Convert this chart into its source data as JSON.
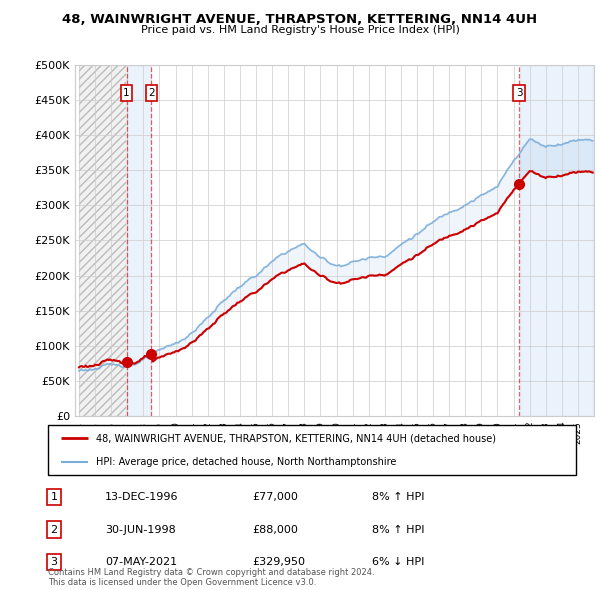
{
  "title": "48, WAINWRIGHT AVENUE, THRAPSTON, KETTERING, NN14 4UH",
  "subtitle": "Price paid vs. HM Land Registry's House Price Index (HPI)",
  "sale_prices": [
    77000,
    88000,
    329950
  ],
  "sale_labels": [
    "1",
    "2",
    "3"
  ],
  "legend_entries": [
    {
      "label": "48, WAINWRIGHT AVENUE, THRAPSTON, KETTERING, NN14 4UH (detached house)",
      "color": "#cc0000",
      "lw": 2.0
    },
    {
      "label": "HPI: Average price, detached house, North Northamptonshire",
      "color": "#7aaddb",
      "lw": 1.5
    }
  ],
  "table_rows": [
    {
      "num": "1",
      "date": "13-DEC-1996",
      "price": "£77,000",
      "hpi": "8% ↑ HPI"
    },
    {
      "num": "2",
      "date": "30-JUN-1998",
      "price": "£88,000",
      "hpi": "8% ↑ HPI"
    },
    {
      "num": "3",
      "date": "07-MAY-2021",
      "price": "£329,950",
      "hpi": "6% ↓ HPI"
    }
  ],
  "footer": "Contains HM Land Registry data © Crown copyright and database right 2024.\nThis data is licensed under the Open Government Licence v3.0.",
  "ylim": [
    0,
    500000
  ],
  "yticks": [
    0,
    50000,
    100000,
    150000,
    200000,
    250000,
    300000,
    350000,
    400000,
    450000,
    500000
  ],
  "ytick_labels": [
    "£0",
    "£50K",
    "£100K",
    "£150K",
    "£200K",
    "£250K",
    "£300K",
    "£350K",
    "£400K",
    "£450K",
    "£500K"
  ],
  "property_color": "#cc0000",
  "hpi_color": "#7aaddb",
  "shade_color": "#cce0f5",
  "vline_color": "#cc0000",
  "hatch_color": "#cccccc"
}
